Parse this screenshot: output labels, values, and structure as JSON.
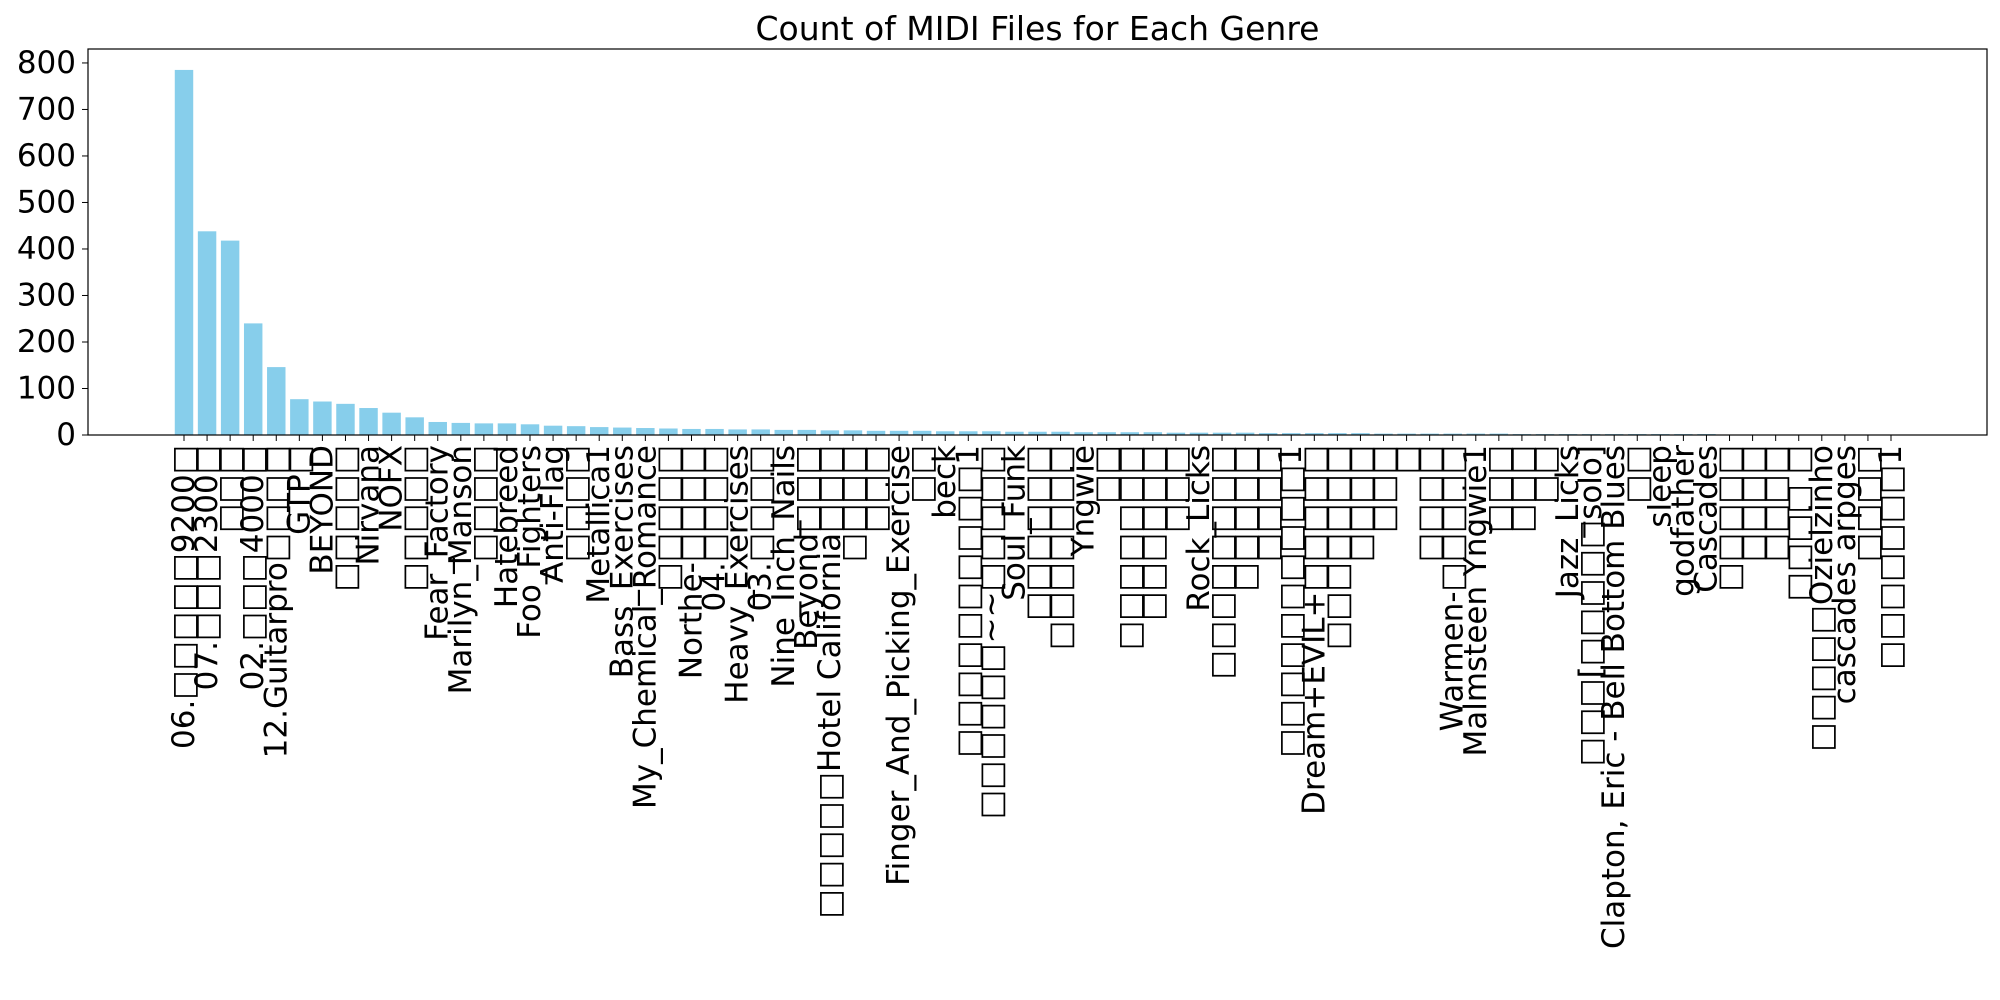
{
  "chart_data": {
    "type": "bar",
    "title": "Count of MIDI Files for Each Genre",
    "xlabel": "",
    "ylabel": "",
    "ylim": [
      0,
      830
    ],
    "yticks": [
      0,
      100,
      200,
      300,
      400,
      500,
      600,
      700,
      800
    ],
    "grid": false,
    "bar_color": "#87CEEB",
    "categories": [
      "06.□□□□□9200□",
      "07.□□□2300□",
      "□□□",
      "02.□□□4000□",
      "12.Guitarpro□□□□",
      "GTP□",
      "BEYOND",
      "□□□□□",
      "Nirvana",
      "NOFX",
      "□□□□□",
      "Fear_Factory",
      "Marilyn_Manson",
      "□□□□",
      "Hatebreed",
      "Foo_Fighters",
      "Anti-Flag",
      "□□□□",
      "Metallica1",
      "Bass_Exercises",
      "My_Chemical_Romance",
      "□□□□□",
      "Northe-□□□□",
      "04.□□□□",
      "Heavy_Exercises",
      "03.□□□□",
      "Nine_Inch_Nails",
      "Beyond□□□",
      "□□□□□Hotel California□□□",
      "□□□□",
      "□□□",
      "Finger_And_Picking_Exercise",
      "□□",
      "beck",
      "□□□□□□□□□□1",
      "□□□□□□~~□□□□□",
      "Soul_Funk",
      "□□□□□□",
      "□□□□□□□",
      "Yngwie",
      "□□",
      "□□□□□□□",
      "□□□□□□",
      "□□□",
      "Rock_Licks",
      "□□□□□□□□",
      "□□□□□",
      "□□□□",
      "□□□□□□□□□□1",
      "Dream+EVIL+□□□□□",
      "□□□□□□□",
      "□□□□",
      "□□□",
      "□",
      "□□□□",
      "Warmen-□□□□□",
      "Malmsteen Yngwie1",
      "□□□",
      "□□□",
      "□□",
      "Jazz_Licks",
      "□□□[□□□□□solo]",
      "Clapton, Eric - Bell Bottom Blues",
      "□□",
      "sleep",
      "godfather",
      "Cascades",
      "□□□□□",
      "□□□□",
      "□□□□",
      "□□□□ □",
      "□□□□□Ozielzinho",
      "cascades arpges",
      "□□□□",
      "□□□□□□□1"
    ],
    "values": [
      785,
      438,
      418,
      240,
      146,
      77,
      72,
      67,
      58,
      48,
      38,
      28,
      26,
      25,
      25,
      23,
      20,
      19,
      17,
      16,
      15,
      14,
      13,
      13,
      12,
      12,
      11,
      11,
      10,
      10,
      9,
      9,
      9,
      8,
      8,
      8,
      7,
      7,
      7,
      6,
      6,
      6,
      6,
      5,
      5,
      5,
      5,
      4,
      4,
      4,
      4,
      4,
      3,
      3,
      3,
      3,
      3,
      3,
      2,
      2,
      2,
      2,
      2,
      2,
      2,
      2,
      2,
      1,
      1,
      1,
      1,
      1,
      1,
      1,
      1
    ]
  }
}
